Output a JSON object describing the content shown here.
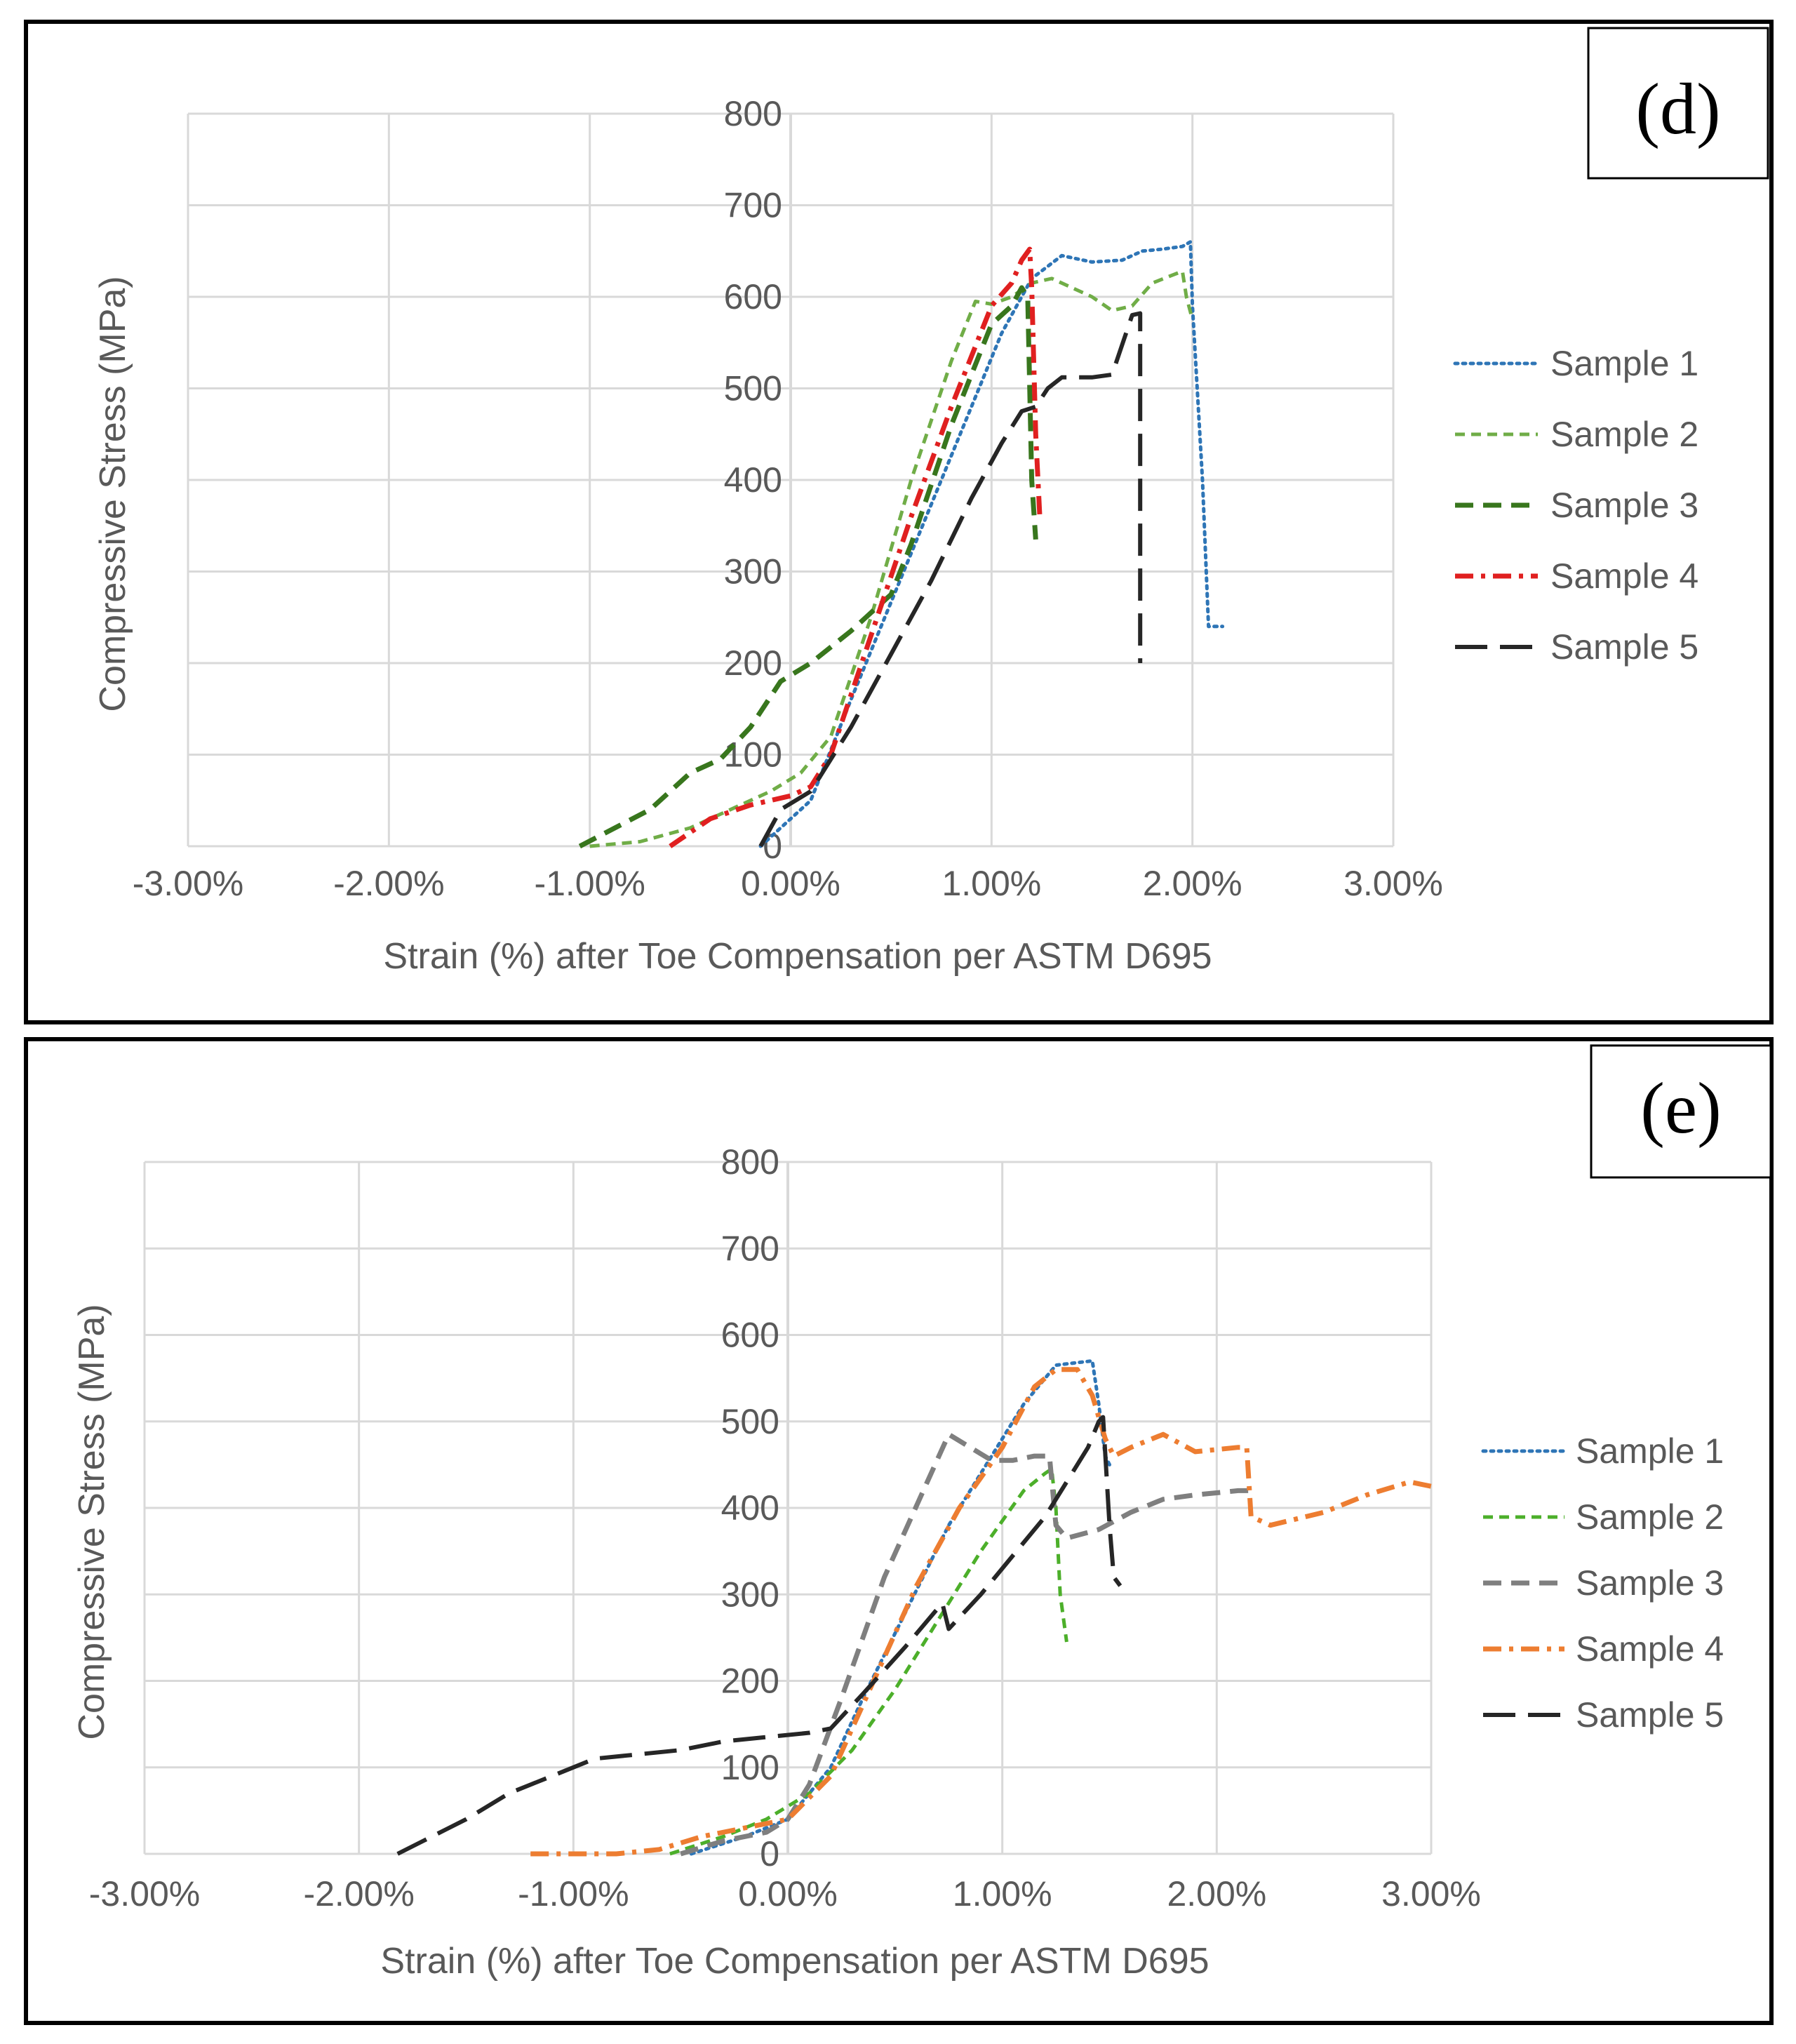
{
  "chart_data": [
    {
      "type": "line",
      "panel_label": "(d)",
      "xlabel": "Strain (%) after Toe Compensation per ASTM D695",
      "ylabel": "Compressive Stress (MPa)",
      "xlim": [
        -3,
        3
      ],
      "ylim": [
        0,
        800
      ],
      "x_ticks": [
        "-3.00%",
        "-2.00%",
        "-1.00%",
        "0.00%",
        "1.00%",
        "2.00%",
        "3.00%"
      ],
      "y_ticks": [
        "0",
        "100",
        "200",
        "300",
        "400",
        "500",
        "600",
        "700",
        "800"
      ],
      "grid": true,
      "legend_position": "right",
      "series": [
        {
          "name": "Sample 1",
          "color": "#2E75B6",
          "dash": "dotted",
          "points": [
            [
              -0.15,
              0
            ],
            [
              -0.05,
              20
            ],
            [
              0.1,
              50
            ],
            [
              0.3,
              160
            ],
            [
              0.6,
              320
            ],
            [
              0.9,
              480
            ],
            [
              1.05,
              560
            ],
            [
              1.2,
              620
            ],
            [
              1.35,
              645
            ],
            [
              1.5,
              638
            ],
            [
              1.65,
              640
            ],
            [
              1.75,
              650
            ],
            [
              1.85,
              652
            ],
            [
              1.95,
              655
            ],
            [
              1.99,
              660
            ],
            [
              2.0,
              590
            ],
            [
              2.05,
              400
            ],
            [
              2.08,
              240
            ],
            [
              2.15,
              240
            ]
          ]
        },
        {
          "name": "Sample 2",
          "color": "#70AD47",
          "dash": "dashed-short",
          "points": [
            [
              -1.0,
              0
            ],
            [
              -0.75,
              5
            ],
            [
              -0.5,
              20
            ],
            [
              -0.3,
              40
            ],
            [
              -0.1,
              60
            ],
            [
              0.05,
              80
            ],
            [
              0.2,
              120
            ],
            [
              0.4,
              250
            ],
            [
              0.6,
              400
            ],
            [
              0.8,
              530
            ],
            [
              0.92,
              595
            ],
            [
              1.0,
              592
            ],
            [
              1.1,
              600
            ],
            [
              1.2,
              615
            ],
            [
              1.3,
              620
            ],
            [
              1.4,
              610
            ],
            [
              1.5,
              600
            ],
            [
              1.6,
              585
            ],
            [
              1.7,
              590
            ],
            [
              1.8,
              615
            ],
            [
              1.95,
              628
            ],
            [
              1.97,
              600
            ],
            [
              2.0,
              575
            ]
          ]
        },
        {
          "name": "Sample 3",
          "color": "#38761D",
          "dash": "dashed",
          "points": [
            [
              -1.05,
              0
            ],
            [
              -0.7,
              40
            ],
            [
              -0.5,
              80
            ],
            [
              -0.35,
              95
            ],
            [
              -0.2,
              130
            ],
            [
              -0.05,
              180
            ],
            [
              0.1,
              200
            ],
            [
              0.3,
              235
            ],
            [
              0.4,
              255
            ],
            [
              0.5,
              275
            ],
            [
              0.6,
              330
            ],
            [
              0.8,
              460
            ],
            [
              1.0,
              570
            ],
            [
              1.1,
              590
            ],
            [
              1.15,
              610
            ],
            [
              1.18,
              600
            ],
            [
              1.2,
              400
            ],
            [
              1.22,
              335
            ]
          ]
        },
        {
          "name": "Sample 4",
          "color": "#E02020",
          "dash": "dashdot",
          "points": [
            [
              -0.6,
              0
            ],
            [
              -0.4,
              30
            ],
            [
              -0.2,
              45
            ],
            [
              0.0,
              55
            ],
            [
              0.1,
              65
            ],
            [
              0.2,
              100
            ],
            [
              0.4,
              230
            ],
            [
              0.6,
              360
            ],
            [
              0.8,
              480
            ],
            [
              1.0,
              590
            ],
            [
              1.1,
              615
            ],
            [
              1.15,
              640
            ],
            [
              1.19,
              652
            ],
            [
              1.2,
              610
            ],
            [
              1.22,
              450
            ],
            [
              1.24,
              360
            ]
          ]
        },
        {
          "name": "Sample 5",
          "color": "#262626",
          "dash": "longdash",
          "points": [
            [
              -0.15,
              0
            ],
            [
              -0.05,
              40
            ],
            [
              0.1,
              60
            ],
            [
              0.3,
              130
            ],
            [
              0.5,
              210
            ],
            [
              0.7,
              290
            ],
            [
              0.9,
              380
            ],
            [
              1.05,
              440
            ],
            [
              1.15,
              475
            ],
            [
              1.22,
              480
            ],
            [
              1.28,
              500
            ],
            [
              1.35,
              512
            ],
            [
              1.5,
              512
            ],
            [
              1.6,
              515
            ],
            [
              1.7,
              580
            ],
            [
              1.74,
              582
            ],
            [
              1.74,
              200
            ]
          ]
        }
      ]
    },
    {
      "type": "line",
      "panel_label": "(e)",
      "xlabel": "Strain (%) after Toe Compensation per ASTM D695",
      "ylabel": "Compressive Stress (MPa)",
      "xlim": [
        -3,
        3
      ],
      "ylim": [
        0,
        800
      ],
      "x_ticks": [
        "-3.00%",
        "-2.00%",
        "-1.00%",
        "0.00%",
        "1.00%",
        "2.00%",
        "3.00%"
      ],
      "y_ticks": [
        "0",
        "100",
        "200",
        "300",
        "400",
        "500",
        "600",
        "700",
        "800"
      ],
      "grid": true,
      "legend_position": "right",
      "series": [
        {
          "name": "Sample 1",
          "color": "#2E75B6",
          "dash": "dotted",
          "points": [
            [
              -0.45,
              0
            ],
            [
              -0.2,
              20
            ],
            [
              0.0,
              40
            ],
            [
              0.2,
              100
            ],
            [
              0.35,
              180
            ],
            [
              0.55,
              280
            ],
            [
              0.75,
              380
            ],
            [
              0.95,
              460
            ],
            [
              1.1,
              520
            ],
            [
              1.25,
              565
            ],
            [
              1.35,
              568
            ],
            [
              1.42,
              570
            ],
            [
              1.45,
              520
            ],
            [
              1.48,
              460
            ],
            [
              1.5,
              450
            ]
          ]
        },
        {
          "name": "Sample 2",
          "color": "#4CAF2A",
          "dash": "dashed-short",
          "points": [
            [
              -0.55,
              0
            ],
            [
              -0.3,
              20
            ],
            [
              -0.1,
              40
            ],
            [
              0.1,
              70
            ],
            [
              0.3,
              120
            ],
            [
              0.5,
              190
            ],
            [
              0.7,
              270
            ],
            [
              0.9,
              350
            ],
            [
              1.1,
              420
            ],
            [
              1.2,
              440
            ],
            [
              1.23,
              445
            ],
            [
              1.25,
              400
            ],
            [
              1.27,
              300
            ],
            [
              1.3,
              245
            ]
          ]
        },
        {
          "name": "Sample 3",
          "color": "#7F7F7F",
          "dash": "dashed",
          "points": [
            [
              -0.5,
              0
            ],
            [
              -0.3,
              15
            ],
            [
              -0.1,
              25
            ],
            [
              0.0,
              40
            ],
            [
              0.1,
              80
            ],
            [
              0.25,
              180
            ],
            [
              0.45,
              320
            ],
            [
              0.65,
              430
            ],
            [
              0.75,
              485
            ],
            [
              0.85,
              470
            ],
            [
              0.95,
              455
            ],
            [
              1.05,
              455
            ],
            [
              1.15,
              460
            ],
            [
              1.22,
              460
            ],
            [
              1.25,
              380
            ],
            [
              1.3,
              365
            ],
            [
              1.45,
              375
            ],
            [
              1.6,
              395
            ],
            [
              1.75,
              410
            ],
            [
              1.9,
              415
            ],
            [
              2.1,
              420
            ],
            [
              2.15,
              420
            ]
          ]
        },
        {
          "name": "Sample 4",
          "color": "#ED7D31",
          "dash": "dashdot",
          "points": [
            [
              -1.2,
              0
            ],
            [
              -0.8,
              0
            ],
            [
              -0.6,
              5
            ],
            [
              -0.4,
              20
            ],
            [
              -0.2,
              30
            ],
            [
              0.0,
              40
            ],
            [
              0.2,
              90
            ],
            [
              0.4,
              200
            ],
            [
              0.6,
              310
            ],
            [
              0.8,
              400
            ],
            [
              1.0,
              470
            ],
            [
              1.15,
              540
            ],
            [
              1.25,
              560
            ],
            [
              1.35,
              560
            ],
            [
              1.42,
              530
            ],
            [
              1.48,
              480
            ],
            [
              1.52,
              460
            ],
            [
              1.6,
              470
            ],
            [
              1.75,
              485
            ],
            [
              1.9,
              465
            ],
            [
              2.1,
              470
            ],
            [
              2.14,
              470
            ],
            [
              2.16,
              390
            ],
            [
              2.25,
              380
            ],
            [
              2.5,
              395
            ],
            [
              2.7,
              415
            ],
            [
              2.9,
              430
            ],
            [
              3.0,
              425
            ]
          ]
        },
        {
          "name": "Sample 5",
          "color": "#262626",
          "dash": "longdash",
          "points": [
            [
              -1.82,
              0
            ],
            [
              -1.7,
              15
            ],
            [
              -1.5,
              40
            ],
            [
              -1.3,
              70
            ],
            [
              -1.1,
              90
            ],
            [
              -0.9,
              110
            ],
            [
              -0.7,
              115
            ],
            [
              -0.5,
              120
            ],
            [
              -0.3,
              130
            ],
            [
              -0.1,
              135
            ],
            [
              0.1,
              140
            ],
            [
              0.2,
              145
            ],
            [
              0.35,
              185
            ],
            [
              0.55,
              240
            ],
            [
              0.72,
              290
            ],
            [
              0.75,
              260
            ],
            [
              0.9,
              300
            ],
            [
              1.05,
              345
            ],
            [
              1.2,
              390
            ],
            [
              1.3,
              430
            ],
            [
              1.4,
              470
            ],
            [
              1.45,
              500
            ],
            [
              1.47,
              505
            ],
            [
              1.5,
              380
            ],
            [
              1.52,
              320
            ],
            [
              1.55,
              310
            ]
          ]
        }
      ]
    }
  ]
}
